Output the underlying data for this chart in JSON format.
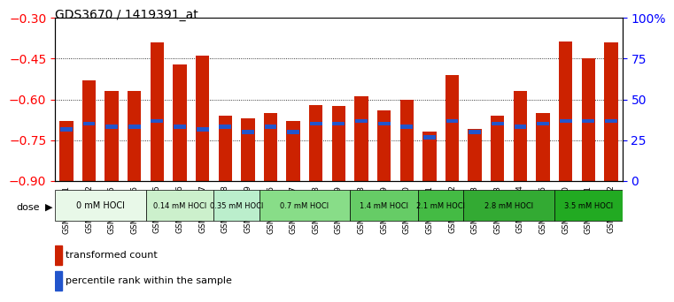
{
  "title": "GDS3670 / 1419391_at",
  "samples": [
    "GSM387601",
    "GSM387602",
    "GSM387605",
    "GSM387606",
    "GSM387645",
    "GSM387646",
    "GSM387647",
    "GSM387648",
    "GSM387649",
    "GSM387676",
    "GSM387677",
    "GSM387678",
    "GSM387679",
    "GSM387698",
    "GSM387699",
    "GSM387700",
    "GSM387701",
    "GSM387702",
    "GSM387703",
    "GSM387713",
    "GSM387714",
    "GSM387716",
    "GSM387750",
    "GSM387751",
    "GSM387752"
  ],
  "red_values": [
    -0.68,
    -0.53,
    -0.57,
    -0.57,
    -0.39,
    -0.47,
    -0.44,
    -0.66,
    -0.67,
    -0.65,
    -0.68,
    -0.62,
    -0.625,
    -0.59,
    -0.64,
    -0.6,
    -0.72,
    -0.51,
    -0.71,
    -0.66,
    -0.57,
    -0.65,
    -0.385,
    -0.45,
    -0.39
  ],
  "blue_positions": [
    -0.71,
    -0.69,
    -0.7,
    -0.7,
    -0.68,
    -0.7,
    -0.71,
    -0.7,
    -0.72,
    -0.7,
    -0.72,
    -0.69,
    -0.69,
    -0.68,
    -0.69,
    -0.7,
    -0.74,
    -0.68,
    -0.72,
    -0.69,
    -0.7,
    -0.69,
    -0.68,
    -0.68,
    -0.68
  ],
  "dose_groups": [
    {
      "label": "0 mM HOCl",
      "start": 0,
      "end": 4,
      "color": "#ccffcc"
    },
    {
      "label": "0.14 mM HOCl",
      "start": 4,
      "end": 7,
      "color": "#99ff99"
    },
    {
      "label": "0.35 mM HOCl",
      "start": 7,
      "end": 9,
      "color": "#88ee88"
    },
    {
      "label": "0.7 mM HOCl",
      "start": 9,
      "end": 13,
      "color": "#66dd66"
    },
    {
      "label": "1.4 mM HOCl",
      "start": 13,
      "end": 16,
      "color": "#55cc55"
    },
    {
      "label": "2.1 mM HOCl",
      "start": 16,
      "end": 18,
      "color": "#44bb44"
    },
    {
      "label": "2.8 mM HOCl",
      "start": 18,
      "end": 22,
      "color": "#33aa33"
    },
    {
      "label": "3.5 mM HOCl",
      "start": 22,
      "end": 25,
      "color": "#22aa22"
    }
  ],
  "ylim_left": [
    -0.9,
    -0.3
  ],
  "ylim_right": [
    0,
    100
  ],
  "yticks_left": [
    -0.9,
    -0.75,
    -0.6,
    -0.45,
    -0.3
  ],
  "yticks_right": [
    0,
    25,
    50,
    75,
    100
  ],
  "bar_color": "#cc2200",
  "blue_color": "#2255cc",
  "bg_color": "#f5f5f5",
  "grid_color": "#000000"
}
